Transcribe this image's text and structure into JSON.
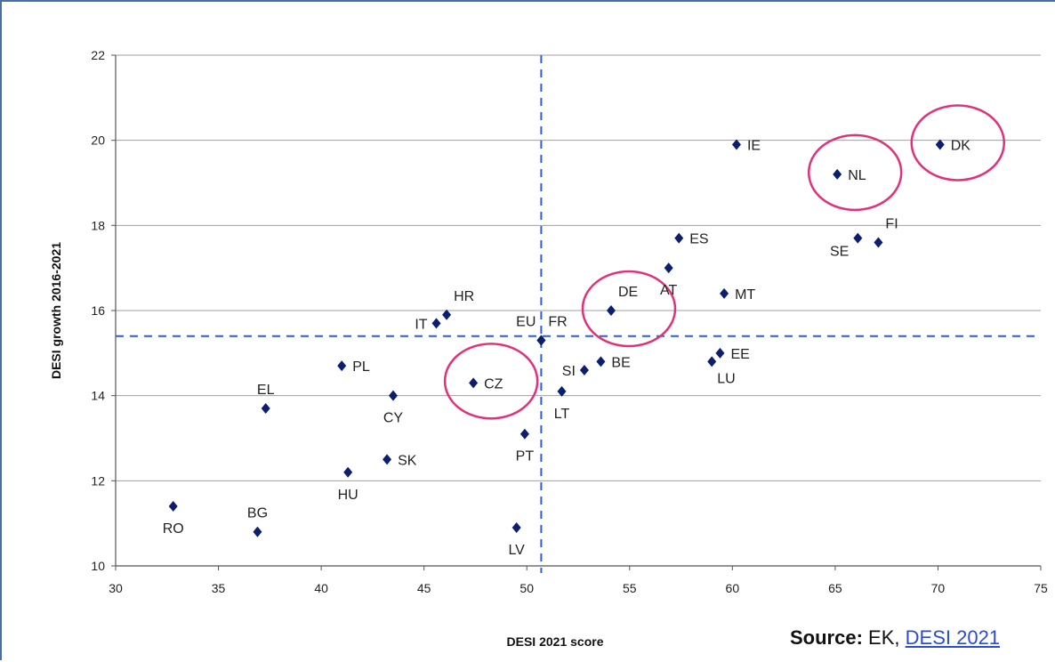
{
  "chart_data": {
    "type": "scatter",
    "xlabel": "DESI 2021 score",
    "ylabel": "DESI growth 2016-2021",
    "xlim": [
      30,
      75
    ],
    "ylim": [
      10,
      22
    ],
    "xticks": [
      30,
      35,
      40,
      45,
      50,
      55,
      60,
      65,
      70,
      75
    ],
    "yticks": [
      10,
      12,
      14,
      16,
      18,
      20,
      22
    ],
    "grid": "horizontal",
    "reference_lines": {
      "x": 50.7,
      "y": 15.4
    },
    "marker_color": "#0b1f6e",
    "reference_line_color": "#2f5fd6",
    "highlight_color": "#e0327a",
    "points": [
      {
        "label": "RO",
        "x": 32.8,
        "y": 11.4,
        "label_pos": "below"
      },
      {
        "label": "BG",
        "x": 36.9,
        "y": 10.8,
        "label_pos": "above"
      },
      {
        "label": "EL",
        "x": 37.3,
        "y": 13.7,
        "label_pos": "above"
      },
      {
        "label": "HU",
        "x": 41.3,
        "y": 12.2,
        "label_pos": "below"
      },
      {
        "label": "PL",
        "x": 41.0,
        "y": 14.7,
        "label_pos": "right"
      },
      {
        "label": "SK",
        "x": 43.2,
        "y": 12.5,
        "label_pos": "right"
      },
      {
        "label": "CY",
        "x": 43.5,
        "y": 14.0,
        "label_pos": "below"
      },
      {
        "label": "IT",
        "x": 45.6,
        "y": 15.7,
        "label_pos": "left"
      },
      {
        "label": "HR",
        "x": 46.1,
        "y": 15.9,
        "label_pos": "above-right"
      },
      {
        "label": "CZ",
        "x": 47.4,
        "y": 14.3,
        "label_pos": "right",
        "highlight": true
      },
      {
        "label": "LV",
        "x": 49.5,
        "y": 10.9,
        "label_pos": "below"
      },
      {
        "label": "PT",
        "x": 49.9,
        "y": 13.1,
        "label_pos": "below"
      },
      {
        "label": "EU",
        "x": 50.7,
        "y": 15.3,
        "label_pos": "above-left"
      },
      {
        "label": "FR",
        "x": 50.7,
        "y": 15.3,
        "label_pos": "above-right"
      },
      {
        "label": "LT",
        "x": 51.7,
        "y": 14.1,
        "label_pos": "below"
      },
      {
        "label": "SI",
        "x": 52.8,
        "y": 14.6,
        "label_pos": "left"
      },
      {
        "label": "BE",
        "x": 53.6,
        "y": 14.8,
        "label_pos": "right"
      },
      {
        "label": "DE",
        "x": 54.1,
        "y": 16.0,
        "label_pos": "above-right",
        "highlight": true
      },
      {
        "label": "AT",
        "x": 56.9,
        "y": 17.0,
        "label_pos": "below"
      },
      {
        "label": "ES",
        "x": 57.4,
        "y": 17.7,
        "label_pos": "right"
      },
      {
        "label": "LU",
        "x": 59.0,
        "y": 14.8,
        "label_pos": "below-right"
      },
      {
        "label": "EE",
        "x": 59.4,
        "y": 15.0,
        "label_pos": "right"
      },
      {
        "label": "MT",
        "x": 59.6,
        "y": 16.4,
        "label_pos": "right"
      },
      {
        "label": "IE",
        "x": 60.2,
        "y": 19.9,
        "label_pos": "right"
      },
      {
        "label": "NL",
        "x": 65.1,
        "y": 19.2,
        "label_pos": "right",
        "highlight": true
      },
      {
        "label": "SE",
        "x": 66.1,
        "y": 17.7,
        "label_pos": "below-left"
      },
      {
        "label": "FI",
        "x": 67.1,
        "y": 17.6,
        "label_pos": "above-right"
      },
      {
        "label": "DK",
        "x": 70.1,
        "y": 19.9,
        "label_pos": "right",
        "highlight": true
      }
    ]
  },
  "source": {
    "label": "Source:",
    "text": "EK,",
    "link_text": "DESI 2021"
  }
}
